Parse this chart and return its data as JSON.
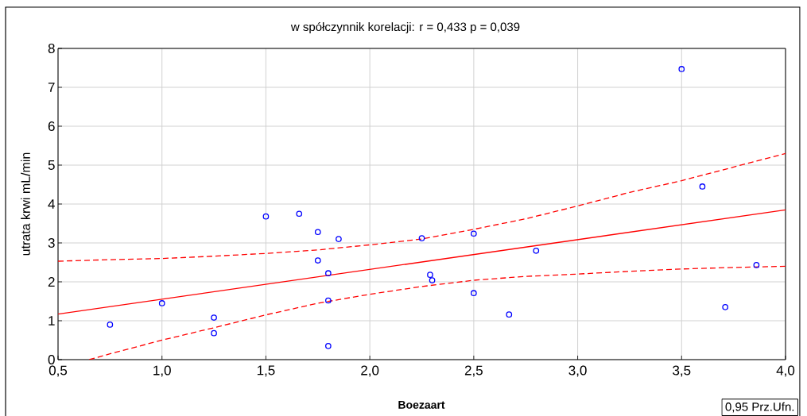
{
  "chart_data": {
    "type": "scatter",
    "title": "w spółczynnik korelacji: r = 0,433  p = 0,039",
    "xlabel": "Boezaart",
    "ylabel": "utrata krwi mL/min",
    "annotations": [
      "0,95 Prz.Ufn."
    ],
    "xlim": [
      0.5,
      4.0
    ],
    "xticks": [
      {
        "value": 0.5,
        "label": "0,5"
      },
      {
        "value": 1.0,
        "label": "1,0"
      },
      {
        "value": 1.5,
        "label": "1,5"
      },
      {
        "value": 2.0,
        "label": "2,0"
      },
      {
        "value": 2.5,
        "label": "2,5"
      },
      {
        "value": 3.0,
        "label": "3,0"
      },
      {
        "value": 3.5,
        "label": "3,5"
      },
      {
        "value": 4.0,
        "label": "4,0"
      }
    ],
    "ylim": [
      0,
      8
    ],
    "yticks": [
      0,
      1,
      2,
      3,
      4,
      5,
      6,
      7,
      8
    ],
    "grid": true,
    "marker": "circle",
    "series": [
      {
        "color": "#0000ff",
        "x": [
          0.75,
          1.0,
          1.25,
          1.25,
          1.5,
          1.66,
          1.75,
          1.75,
          1.8,
          1.85,
          1.8,
          1.8,
          2.25,
          2.29,
          2.3,
          2.5,
          2.5,
          2.67,
          2.8,
          3.5,
          3.6,
          3.71,
          3.86
        ],
        "values": [
          0.9,
          1.45,
          1.08,
          0.68,
          3.68,
          3.75,
          3.28,
          2.55,
          2.22,
          3.1,
          1.52,
          0.35,
          3.12,
          2.18,
          2.04,
          3.24,
          1.71,
          1.16,
          2.8,
          7.47,
          4.45,
          1.35,
          2.43
        ]
      },
      {
        "type": "line",
        "color": "#ff0000",
        "line_style": "solid",
        "marker": "none",
        "x": [
          0.5,
          4.0
        ],
        "values": [
          1.17,
          3.85
        ]
      },
      {
        "type": "line",
        "color": "#ff0000",
        "line_style": "dashed",
        "marker": "none",
        "x": [
          0.5,
          0.75,
          1.0,
          1.25,
          1.5,
          1.75,
          2.0,
          2.25,
          2.5,
          2.75,
          3.0,
          3.25,
          3.5,
          3.75,
          4.0
        ],
        "values": [
          2.53,
          2.57,
          2.6,
          2.66,
          2.73,
          2.82,
          2.95,
          3.1,
          3.35,
          3.62,
          3.95,
          4.3,
          4.6,
          4.95,
          5.3
        ]
      },
      {
        "type": "line",
        "color": "#ff0000",
        "line_style": "dashed",
        "marker": "none",
        "x": [
          0.65,
          0.75,
          1.0,
          1.25,
          1.5,
          1.75,
          2.0,
          2.25,
          2.5,
          2.75,
          3.0,
          3.25,
          3.5,
          3.75,
          4.0
        ],
        "values": [
          0,
          0.15,
          0.5,
          0.82,
          1.15,
          1.45,
          1.68,
          1.88,
          2.04,
          2.14,
          2.2,
          2.27,
          2.33,
          2.37,
          2.4
        ]
      }
    ]
  }
}
